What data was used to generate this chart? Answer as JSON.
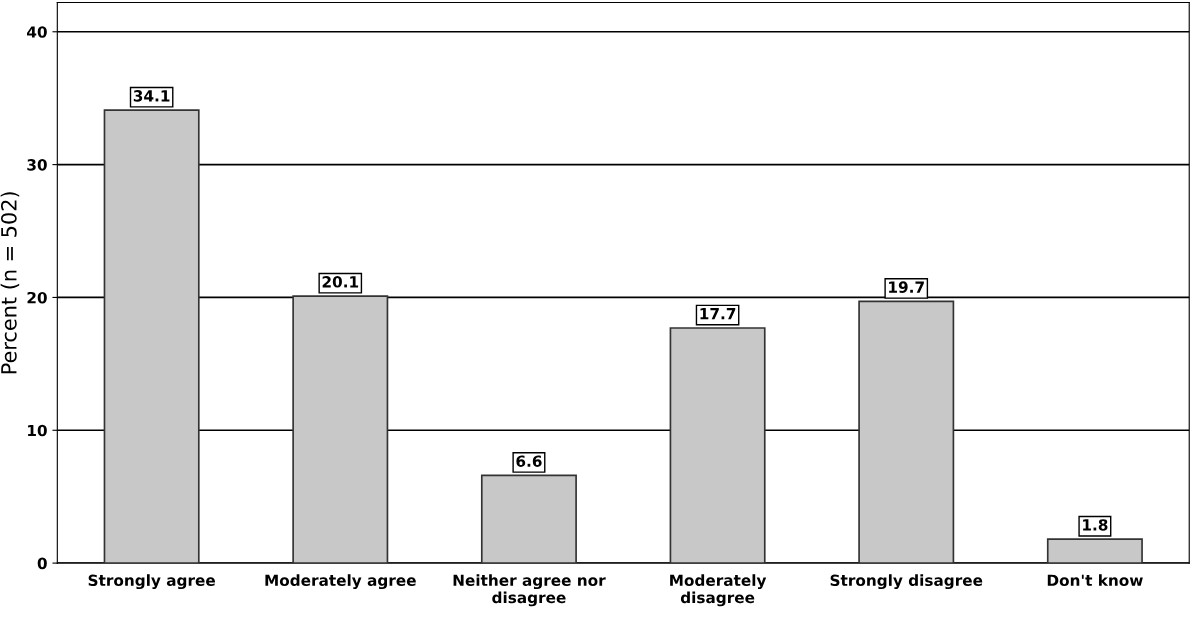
{
  "chart_data": {
    "type": "bar",
    "ylabel": "Percent (n = 502)",
    "categories": [
      "Strongly agree",
      "Moderately agree",
      "Neither agree nor\ndisagree",
      "Moderately\ndisagree",
      "Strongly disagree",
      "Don't know"
    ],
    "values": [
      34.1,
      20.1,
      6.6,
      17.7,
      19.7,
      1.8
    ],
    "color": "#c8c8c8",
    "ylim": [
      0,
      42.2
    ],
    "yticks": [
      0,
      10,
      20,
      30,
      40
    ],
    "grid": "y",
    "data_labels": true
  }
}
